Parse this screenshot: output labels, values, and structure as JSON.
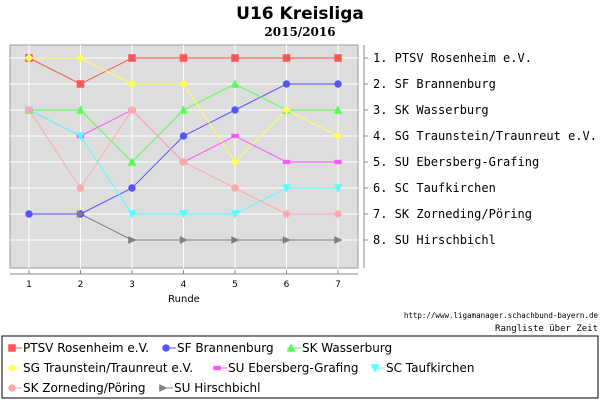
{
  "chart_data": {
    "type": "line",
    "title": "U16 Kreisliga",
    "subtitle": "2015/2016",
    "xlabel": "Runde",
    "x": [
      1,
      2,
      3,
      4,
      5,
      6,
      7
    ],
    "ylim": [
      1,
      8
    ],
    "y_inverted": true,
    "grid": true,
    "legend_position": "bottom",
    "rank_labels": [
      "1. PTSV Rosenheim e.V.",
      "2. SF Brannenburg",
      "3. SK Wasserburg",
      "4. SG Traunstein/Traunreut e.V.",
      "5. SU Ebersberg-Grafing",
      "6. SC Taufkirchen",
      "7. SK Zorneding/Pöring",
      "8. SU Hirschbichl"
    ],
    "series": [
      {
        "name": "PTSV Rosenheim e.V.",
        "color": "#ff5555",
        "marker": "square",
        "values": [
          1,
          2,
          1,
          1,
          1,
          1,
          1
        ]
      },
      {
        "name": "SF Brannenburg",
        "color": "#5555ff",
        "marker": "circle",
        "values": [
          7,
          7,
          6,
          4,
          3,
          2,
          2
        ]
      },
      {
        "name": "SK Wasserburg",
        "color": "#55ff55",
        "marker": "triangle-up",
        "values": [
          3,
          3,
          5,
          3,
          2,
          3,
          3
        ]
      },
      {
        "name": "SG Traunstein/Traunreut e.V.",
        "color": "#ffff55",
        "marker": "diamond",
        "values": [
          1,
          1,
          2,
          2,
          5,
          3,
          4
        ]
      },
      {
        "name": "SU Ebersberg-Grafing",
        "color": "#ff55ff",
        "marker": "rect",
        "values": [
          3,
          4,
          3,
          5,
          4,
          5,
          5
        ]
      },
      {
        "name": "SC Taufkirchen",
        "color": "#55ffff",
        "marker": "triangle-down",
        "values": [
          3,
          4,
          7,
          7,
          7,
          6,
          6
        ]
      },
      {
        "name": "SK Zorneding/Pöring",
        "color": "#ffaaaa",
        "marker": "circle",
        "values": [
          3,
          6,
          3,
          5,
          6,
          7,
          7
        ]
      },
      {
        "name": "SU Hirschbichl",
        "color": "#808080",
        "marker": "triangle-right",
        "values": [
          null,
          7,
          8,
          8,
          8,
          8,
          8
        ]
      }
    ]
  },
  "footer": {
    "url": "http://www.ligamanager.schachbund-bayern.de",
    "caption": "Rangliste über Zeit"
  }
}
